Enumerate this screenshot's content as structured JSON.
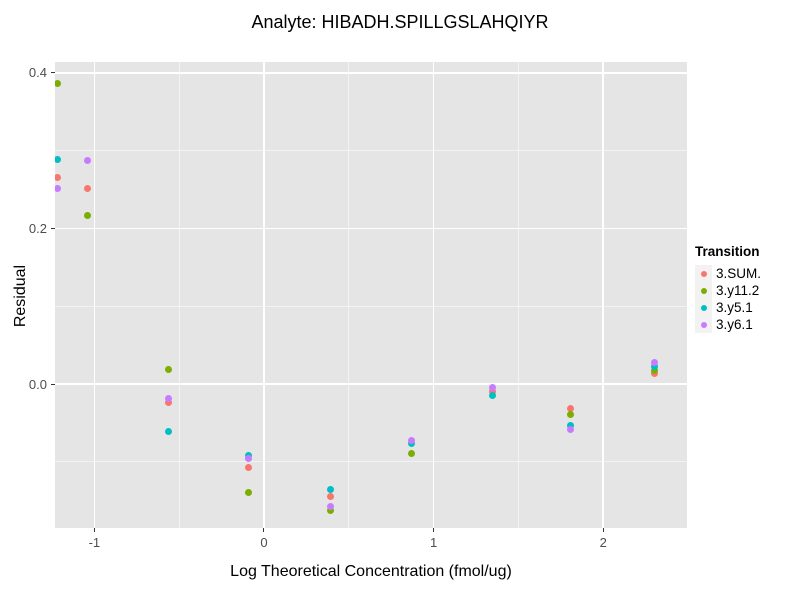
{
  "title": "Analyte: HIBADH.SPILLGSLAHQIYR",
  "chart_data": {
    "type": "scatter",
    "title": "Analyte: HIBADH.SPILLGSLAHQIYR",
    "xlabel": "Log Theoretical Concentration (fmol/ug)",
    "ylabel": "Residual",
    "legend_title": "Transition",
    "legend_position": "right",
    "background": "#e5e5e5",
    "grid": true,
    "xlim": [
      -1.232,
      2.494
    ],
    "ylim": [
      -0.185,
      0.414
    ],
    "x_ticks": [
      {
        "v": -1,
        "label": "-1"
      },
      {
        "v": 0,
        "label": "0"
      },
      {
        "v": 1,
        "label": "1"
      },
      {
        "v": 2,
        "label": "2"
      }
    ],
    "y_ticks": [
      {
        "v": 0.0,
        "label": "0.0"
      },
      {
        "v": 0.2,
        "label": "0.2"
      },
      {
        "v": 0.4,
        "label": "0.4"
      }
    ],
    "x_minor_ticks": [
      -0.5,
      0.5,
      1.5
    ],
    "y_minor_ticks": [
      -0.1,
      0.1,
      0.3
    ],
    "series": [
      {
        "name": "3.SUM.",
        "color": "#F8766D",
        "points": [
          [
            -1.22,
            0.265
          ],
          [
            -1.04,
            0.252
          ],
          [
            -0.56,
            -0.024
          ],
          [
            -0.09,
            -0.107
          ],
          [
            0.39,
            -0.144
          ],
          [
            1.35,
            -0.01
          ],
          [
            1.81,
            -0.032
          ],
          [
            2.3,
            0.013
          ]
        ]
      },
      {
        "name": "3.y11.2",
        "color": "#7CAE00",
        "points": [
          [
            -1.22,
            0.387
          ],
          [
            -1.04,
            0.217
          ],
          [
            -0.56,
            0.019
          ],
          [
            -0.09,
            -0.139
          ],
          [
            0.39,
            -0.163
          ],
          [
            0.87,
            -0.089
          ],
          [
            1.81,
            -0.039
          ],
          [
            2.3,
            0.017
          ]
        ]
      },
      {
        "name": "3.y5.1",
        "color": "#00BFC4",
        "points": [
          [
            -1.22,
            0.289
          ],
          [
            -0.56,
            -0.061
          ],
          [
            -0.09,
            -0.092
          ],
          [
            0.39,
            -0.135
          ],
          [
            0.87,
            -0.077
          ],
          [
            1.35,
            -0.015
          ],
          [
            1.81,
            -0.053
          ],
          [
            2.3,
            0.022
          ]
        ]
      },
      {
        "name": "3.y6.1",
        "color": "#C77CFF",
        "points": [
          [
            -1.22,
            0.2515
          ],
          [
            -1.04,
            0.287
          ],
          [
            -0.56,
            -0.018
          ],
          [
            -0.09,
            -0.096
          ],
          [
            0.39,
            -0.157
          ],
          [
            0.87,
            -0.072
          ],
          [
            1.35,
            -0.005
          ],
          [
            1.81,
            -0.059
          ],
          [
            2.3,
            0.028
          ]
        ]
      }
    ]
  }
}
